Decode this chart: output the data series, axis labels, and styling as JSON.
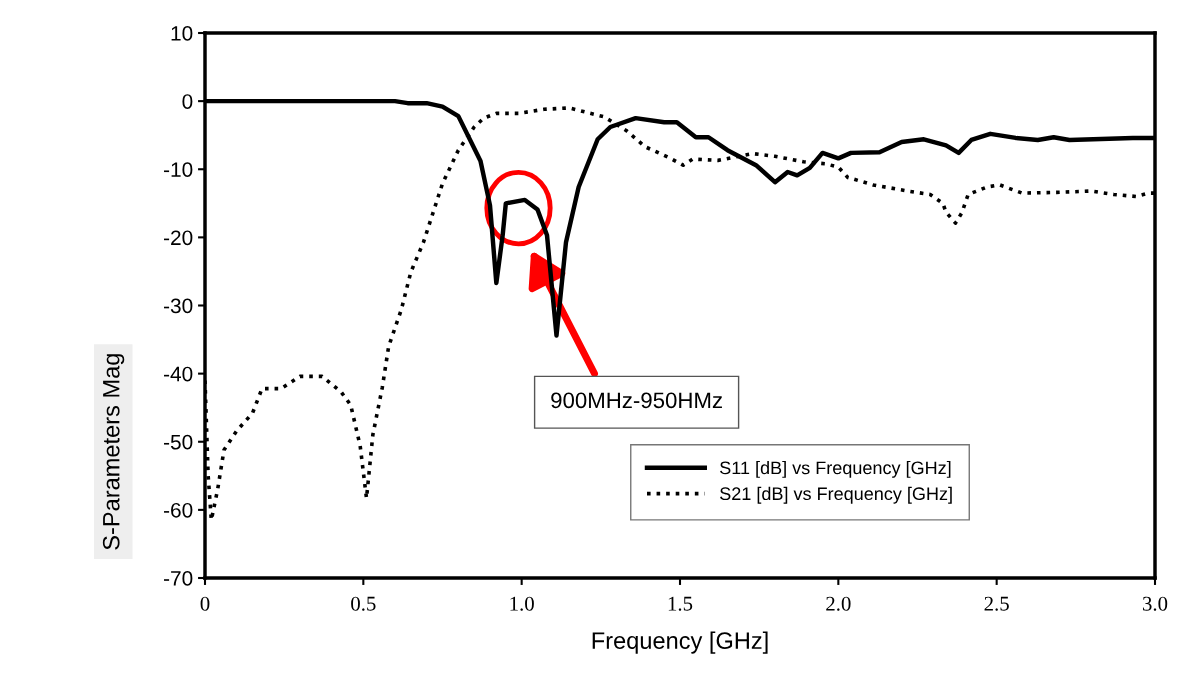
{
  "chart_data": {
    "type": "line",
    "xlabel": "Frequency [GHz]",
    "ylabel": "S-Parameters Mag",
    "xlim": [
      0,
      3.0
    ],
    "ylim": [
      -70,
      10
    ],
    "xticks": [
      0,
      {
        "value": 0.5,
        "label": "0.5"
      },
      {
        "value": 1.0,
        "label": "1.0"
      },
      {
        "value": 1.5,
        "label": "1.5"
      },
      {
        "value": 2.0,
        "label": "2.0"
      },
      {
        "value": 2.5,
        "label": "2.5"
      },
      {
        "value": 3.0,
        "label": "3.0"
      }
    ],
    "yticks": [
      10,
      0,
      -10,
      -20,
      -30,
      -40,
      -50,
      -60,
      -70
    ],
    "grid": false,
    "legend": "bottom right",
    "marker": "none",
    "annotations": [
      "900MHz-950HMz"
    ],
    "series": [
      {
        "name": "S11 [dB] vs Frequency [GHz]",
        "color": "#000000",
        "line_style": "solid",
        "x": [
          0,
          0.3,
          0.6,
          0.64,
          0.7,
          0.75,
          0.8,
          0.87,
          0.9,
          0.92,
          0.94,
          0.95,
          1.01,
          1.05,
          1.08,
          1.11,
          1.14,
          1.18,
          1.24,
          1.28,
          1.36,
          1.45,
          1.49,
          1.55,
          1.59,
          1.65,
          1.74,
          1.8,
          1.84,
          1.87,
          1.91,
          1.95,
          2.0,
          2.04,
          2.13,
          2.2,
          2.27,
          2.34,
          2.38,
          2.42,
          2.48,
          2.56,
          2.63,
          2.68,
          2.73,
          2.93,
          2.98,
          3.0
        ],
        "values": [
          0,
          0,
          0,
          -0.3,
          -0.3,
          -0.8,
          -2.2,
          -8.8,
          -15.3,
          -26.7,
          -19.7,
          -15,
          -14.5,
          -15.9,
          -19.7,
          -34.4,
          -20.7,
          -12.6,
          -5.6,
          -3.8,
          -2.5,
          -3.1,
          -3.1,
          -5.3,
          -5.3,
          -7.2,
          -9.4,
          -11.9,
          -10.4,
          -10.9,
          -9.8,
          -7.6,
          -8.4,
          -7.6,
          -7.5,
          -6.0,
          -5.6,
          -6.5,
          -7.6,
          -5.7,
          -4.8,
          -5.4,
          -5.7,
          -5.3,
          -5.7,
          -5.4,
          -5.4,
          -5.4
        ]
      },
      {
        "name": "S21 [dB] vs Frequency [GHz]",
        "color": "#000000",
        "line_style": "dotted",
        "x": [
          0,
          0.01,
          0.02,
          0.04,
          0.06,
          0.1,
          0.15,
          0.18,
          0.24,
          0.3,
          0.37,
          0.43,
          0.46,
          0.49,
          0.51,
          0.53,
          0.56,
          0.58,
          0.62,
          0.65,
          0.69,
          0.72,
          0.75,
          0.8,
          0.85,
          0.88,
          0.92,
          0.99,
          1.07,
          1.15,
          1.26,
          1.33,
          1.39,
          1.47,
          1.51,
          1.54,
          1.62,
          1.73,
          1.8,
          1.89,
          1.96,
          2.0,
          2.03,
          2.11,
          2.22,
          2.29,
          2.33,
          2.34,
          2.37,
          2.39,
          2.41,
          2.47,
          2.51,
          2.58,
          2.69,
          2.8,
          2.87,
          2.94,
          2.98,
          3.0
        ],
        "values": [
          -41,
          -55,
          -61.5,
          -57,
          -51.2,
          -48.4,
          -45.8,
          -42.2,
          -42.2,
          -40.4,
          -40.4,
          -42.7,
          -44.6,
          -50.6,
          -58.3,
          -49.0,
          -42.0,
          -36.0,
          -30.6,
          -25.1,
          -20.7,
          -16.4,
          -12.1,
          -7.2,
          -3.8,
          -2.5,
          -1.8,
          -1.8,
          -1.2,
          -1.0,
          -2.3,
          -4.3,
          -6.7,
          -8.4,
          -9.4,
          -8.5,
          -8.7,
          -7.7,
          -8.1,
          -8.9,
          -9.2,
          -9.7,
          -11.2,
          -12.3,
          -13.2,
          -13.7,
          -15.0,
          -16.3,
          -17.9,
          -16.4,
          -13.7,
          -12.6,
          -12.3,
          -13.5,
          -13.4,
          -13.2,
          -13.7,
          -14.0,
          -13.5,
          -13.5
        ]
      }
    ]
  }
}
